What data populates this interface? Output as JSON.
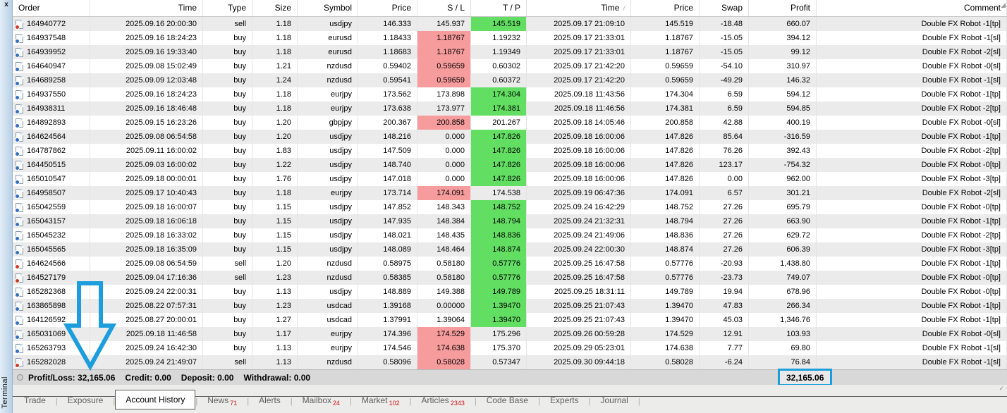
{
  "panel": {
    "close_label": "x",
    "terminal_label": "Terminal"
  },
  "colors": {
    "accent_blue": "#1b9edb",
    "tp_green": "#62de62",
    "sl_pink": "#f79c9c",
    "row_alt": "#ebebeb",
    "tab_count_red": "#cc1111"
  },
  "icons": {
    "sort_ascending": "/",
    "order_buy": "doc-with-blue-dot",
    "order_sell": "doc-with-red-dot",
    "status_circle": "hollow-circle",
    "corner_top_right": "◢",
    "corner_bottom_right": "✓"
  },
  "table": {
    "columns": [
      {
        "key": "order",
        "label": "Order",
        "align": "left",
        "sort": false
      },
      {
        "key": "open_time",
        "label": "Time",
        "align": "right",
        "sort": false
      },
      {
        "key": "type",
        "label": "Type",
        "align": "right",
        "sort": false
      },
      {
        "key": "size",
        "label": "Size",
        "align": "right",
        "sort": false
      },
      {
        "key": "symbol",
        "label": "Symbol",
        "align": "right",
        "sort": false
      },
      {
        "key": "open_price",
        "label": "Price",
        "align": "right",
        "sort": false
      },
      {
        "key": "sl",
        "label": "S / L",
        "align": "right",
        "sort": false
      },
      {
        "key": "tp",
        "label": "T / P",
        "align": "right",
        "sort": false
      },
      {
        "key": "close_time",
        "label": "Time",
        "align": "right",
        "sort": true
      },
      {
        "key": "close_price",
        "label": "Price",
        "align": "right",
        "sort": false
      },
      {
        "key": "swap",
        "label": "Swap",
        "align": "right",
        "sort": false
      },
      {
        "key": "profit",
        "label": "Profit",
        "align": "right",
        "sort": false
      },
      {
        "key": "comment",
        "label": "Comment",
        "align": "right",
        "sort": false
      }
    ],
    "rows": [
      {
        "order": "164940772",
        "open_time": "2025.09.16 20:00:30",
        "type": "sell",
        "size": "1.18",
        "symbol": "usdjpy",
        "open_price": "146.333",
        "sl": "145.937",
        "tp": "145.519",
        "sl_hl": false,
        "tp_hl": true,
        "close_time": "2025.09.17 21:09:10",
        "close_price": "145.519",
        "swap": "-18.48",
        "profit": "660.07",
        "comment": "Double FX Robot -1[tp]"
      },
      {
        "order": "164937548",
        "open_time": "2025.09.16 18:24:23",
        "type": "buy",
        "size": "1.18",
        "symbol": "eurusd",
        "open_price": "1.18433",
        "sl": "1.18767",
        "tp": "1.19232",
        "sl_hl": true,
        "tp_hl": false,
        "close_time": "2025.09.17 21:33:01",
        "close_price": "1.18767",
        "swap": "-15.05",
        "profit": "394.12",
        "comment": "Double FX Robot -1[sl]"
      },
      {
        "order": "164939952",
        "open_time": "2025.09.16 19:33:40",
        "type": "buy",
        "size": "1.18",
        "symbol": "eurusd",
        "open_price": "1.18683",
        "sl": "1.18767",
        "tp": "1.19349",
        "sl_hl": true,
        "tp_hl": false,
        "close_time": "2025.09.17 21:33:01",
        "close_price": "1.18767",
        "swap": "-15.05",
        "profit": "99.12",
        "comment": "Double FX Robot -2[sl]"
      },
      {
        "order": "164640947",
        "open_time": "2025.09.08 15:02:49",
        "type": "buy",
        "size": "1.21",
        "symbol": "nzdusd",
        "open_price": "0.59402",
        "sl": "0.59659",
        "tp": "0.60302",
        "sl_hl": true,
        "tp_hl": false,
        "close_time": "2025.09.17 21:42:20",
        "close_price": "0.59659",
        "swap": "-54.10",
        "profit": "310.97",
        "comment": "Double FX Robot -0[sl]"
      },
      {
        "order": "164689258",
        "open_time": "2025.09.09 12:03:48",
        "type": "buy",
        "size": "1.24",
        "symbol": "nzdusd",
        "open_price": "0.59541",
        "sl": "0.59659",
        "tp": "0.60372",
        "sl_hl": true,
        "tp_hl": false,
        "close_time": "2025.09.17 21:42:20",
        "close_price": "0.59659",
        "swap": "-49.29",
        "profit": "146.32",
        "comment": "Double FX Robot -1[sl]"
      },
      {
        "order": "164937550",
        "open_time": "2025.09.16 18:24:23",
        "type": "buy",
        "size": "1.18",
        "symbol": "eurjpy",
        "open_price": "173.562",
        "sl": "173.898",
        "tp": "174.304",
        "sl_hl": false,
        "tp_hl": true,
        "close_time": "2025.09.18 11:43:56",
        "close_price": "174.304",
        "swap": "6.59",
        "profit": "594.12",
        "comment": "Double FX Robot -1[tp]"
      },
      {
        "order": "164938311",
        "open_time": "2025.09.16 18:46:48",
        "type": "buy",
        "size": "1.18",
        "symbol": "eurjpy",
        "open_price": "173.638",
        "sl": "173.977",
        "tp": "174.381",
        "sl_hl": false,
        "tp_hl": true,
        "close_time": "2025.09.18 11:46:56",
        "close_price": "174.381",
        "swap": "6.59",
        "profit": "594.85",
        "comment": "Double FX Robot -2[tp]"
      },
      {
        "order": "164892893",
        "open_time": "2025.09.15 16:23:26",
        "type": "buy",
        "size": "1.20",
        "symbol": "gbpjpy",
        "open_price": "200.367",
        "sl": "200.858",
        "tp": "201.267",
        "sl_hl": true,
        "tp_hl": false,
        "close_time": "2025.09.18 14:05:46",
        "close_price": "200.858",
        "swap": "42.88",
        "profit": "400.19",
        "comment": "Double FX Robot -0[sl]"
      },
      {
        "order": "164624564",
        "open_time": "2025.09.08 06:54:58",
        "type": "buy",
        "size": "1.20",
        "symbol": "usdjpy",
        "open_price": "148.216",
        "sl": "0.000",
        "tp": "147.826",
        "sl_hl": false,
        "tp_hl": true,
        "close_time": "2025.09.18 16:00:06",
        "close_price": "147.826",
        "swap": "85.64",
        "profit": "-316.59",
        "comment": "Double FX Robot -1[tp]"
      },
      {
        "order": "164787862",
        "open_time": "2025.09.11 16:00:02",
        "type": "buy",
        "size": "1.83",
        "symbol": "usdjpy",
        "open_price": "147.509",
        "sl": "0.000",
        "tp": "147.826",
        "sl_hl": false,
        "tp_hl": true,
        "close_time": "2025.09.18 16:00:06",
        "close_price": "147.826",
        "swap": "76.26",
        "profit": "392.43",
        "comment": "Double FX Robot -2[tp]"
      },
      {
        "order": "164450515",
        "open_time": "2025.09.03 16:00:02",
        "type": "buy",
        "size": "1.22",
        "symbol": "usdjpy",
        "open_price": "148.740",
        "sl": "0.000",
        "tp": "147.826",
        "sl_hl": false,
        "tp_hl": true,
        "close_time": "2025.09.18 16:00:06",
        "close_price": "147.826",
        "swap": "123.17",
        "profit": "-754.32",
        "comment": "Double FX Robot -0[tp]"
      },
      {
        "order": "165010547",
        "open_time": "2025.09.18 00:00:01",
        "type": "buy",
        "size": "1.76",
        "symbol": "usdjpy",
        "open_price": "147.018",
        "sl": "0.000",
        "tp": "147.826",
        "sl_hl": false,
        "tp_hl": true,
        "close_time": "2025.09.18 16:00:06",
        "close_price": "147.826",
        "swap": "0.00",
        "profit": "962.00",
        "comment": "Double FX Robot -3[tp]"
      },
      {
        "order": "164958507",
        "open_time": "2025.09.17 10:40:43",
        "type": "buy",
        "size": "1.18",
        "symbol": "eurjpy",
        "open_price": "173.714",
        "sl": "174.091",
        "tp": "174.538",
        "sl_hl": true,
        "tp_hl": false,
        "close_time": "2025.09.19 06:47:36",
        "close_price": "174.091",
        "swap": "6.57",
        "profit": "301.21",
        "comment": "Double FX Robot -2[sl]"
      },
      {
        "order": "165042559",
        "open_time": "2025.09.18 16:00:07",
        "type": "buy",
        "size": "1.15",
        "symbol": "usdjpy",
        "open_price": "147.852",
        "sl": "148.343",
        "tp": "148.752",
        "sl_hl": false,
        "tp_hl": true,
        "close_time": "2025.09.24 16:42:29",
        "close_price": "148.752",
        "swap": "27.26",
        "profit": "695.79",
        "comment": "Double FX Robot -0[tp]"
      },
      {
        "order": "165043157",
        "open_time": "2025.09.18 16:06:18",
        "type": "buy",
        "size": "1.15",
        "symbol": "usdjpy",
        "open_price": "147.935",
        "sl": "148.384",
        "tp": "148.794",
        "sl_hl": false,
        "tp_hl": true,
        "close_time": "2025.09.24 21:32:31",
        "close_price": "148.794",
        "swap": "27.26",
        "profit": "663.90",
        "comment": "Double FX Robot -1[tp]"
      },
      {
        "order": "165045232",
        "open_time": "2025.09.18 16:33:02",
        "type": "buy",
        "size": "1.15",
        "symbol": "usdjpy",
        "open_price": "148.021",
        "sl": "148.435",
        "tp": "148.836",
        "sl_hl": false,
        "tp_hl": true,
        "close_time": "2025.09.24 21:49:06",
        "close_price": "148.836",
        "swap": "27.26",
        "profit": "629.72",
        "comment": "Double FX Robot -2[tp]"
      },
      {
        "order": "165045565",
        "open_time": "2025.09.18 16:35:09",
        "type": "buy",
        "size": "1.15",
        "symbol": "usdjpy",
        "open_price": "148.089",
        "sl": "148.464",
        "tp": "148.874",
        "sl_hl": false,
        "tp_hl": true,
        "close_time": "2025.09.24 22:00:30",
        "close_price": "148.874",
        "swap": "27.26",
        "profit": "606.39",
        "comment": "Double FX Robot -3[tp]"
      },
      {
        "order": "164624566",
        "open_time": "2025.09.08 06:54:59",
        "type": "sell",
        "size": "1.20",
        "symbol": "nzdusd",
        "open_price": "0.58975",
        "sl": "0.58180",
        "tp": "0.57776",
        "sl_hl": false,
        "tp_hl": true,
        "close_time": "2025.09.25 16:47:58",
        "close_price": "0.57776",
        "swap": "-20.93",
        "profit": "1,438.80",
        "comment": "Double FX Robot -1[tp]"
      },
      {
        "order": "164527179",
        "open_time": "2025.09.04 17:16:36",
        "type": "sell",
        "size": "1.23",
        "symbol": "nzdusd",
        "open_price": "0.58385",
        "sl": "0.58180",
        "tp": "0.57776",
        "sl_hl": false,
        "tp_hl": true,
        "close_time": "2025.09.25 16:47:58",
        "close_price": "0.57776",
        "swap": "-23.73",
        "profit": "749.07",
        "comment": "Double FX Robot -0[tp]"
      },
      {
        "order": "165282368",
        "open_time": "2025.09.24 22:00:31",
        "type": "buy",
        "size": "1.13",
        "symbol": "usdjpy",
        "open_price": "148.889",
        "sl": "149.388",
        "tp": "149.789",
        "sl_hl": false,
        "tp_hl": true,
        "close_time": "2025.09.25 18:31:11",
        "close_price": "149.789",
        "swap": "19.94",
        "profit": "678.96",
        "comment": "Double FX Robot -0[tp]"
      },
      {
        "order": "163865898",
        "open_time": "2025.08.22 07:57:31",
        "type": "buy",
        "size": "1.23",
        "symbol": "usdcad",
        "open_price": "1.39168",
        "sl": "0.00000",
        "tp": "1.39470",
        "sl_hl": false,
        "tp_hl": true,
        "close_time": "2025.09.25 21:07:43",
        "close_price": "1.39470",
        "swap": "47.83",
        "profit": "266.34",
        "comment": "Double FX Robot -1[tp]"
      },
      {
        "order": "164126592",
        "open_time": "2025.08.27 20:00:01",
        "type": "buy",
        "size": "1.27",
        "symbol": "usdcad",
        "open_price": "1.37991",
        "sl": "1.39064",
        "tp": "1.39470",
        "sl_hl": false,
        "tp_hl": true,
        "close_time": "2025.09.25 21:07:43",
        "close_price": "1.39470",
        "swap": "45.03",
        "profit": "1,346.76",
        "comment": "Double FX Robot -1[tp]"
      },
      {
        "order": "165031069",
        "open_time": "2025.09.18 11:46:58",
        "type": "buy",
        "size": "1.17",
        "symbol": "eurjpy",
        "open_price": "174.396",
        "sl": "174.529",
        "tp": "175.296",
        "sl_hl": true,
        "tp_hl": false,
        "close_time": "2025.09.26 00:59:28",
        "close_price": "174.529",
        "swap": "12.91",
        "profit": "103.93",
        "comment": "Double FX Robot -0[sl]"
      },
      {
        "order": "165263793",
        "open_time": "2025.09.24 16:42:30",
        "type": "buy",
        "size": "1.13",
        "symbol": "eurjpy",
        "open_price": "174.546",
        "sl": "174.638",
        "tp": "175.370",
        "sl_hl": true,
        "tp_hl": false,
        "close_time": "2025.09.29 05:23:01",
        "close_price": "174.638",
        "swap": "7.77",
        "profit": "69.80",
        "comment": "Double FX Robot -1[sl]"
      },
      {
        "order": "165282028",
        "open_time": "2025.09.24 21:49:07",
        "type": "sell",
        "size": "1.13",
        "symbol": "nzdusd",
        "open_price": "0.58096",
        "sl": "0.58028",
        "tp": "0.57347",
        "sl_hl": true,
        "tp_hl": false,
        "close_time": "2025.09.30 09:44:18",
        "close_price": "0.58028",
        "swap": "-6.24",
        "profit": "76.84",
        "comment": "Double FX Robot -1[sl]"
      }
    ]
  },
  "status_bar": {
    "profit_loss_label": "Profit/Loss:",
    "profit_loss": "32,165.06",
    "credit_label": "Credit:",
    "credit": "0.00",
    "deposit_label": "Deposit:",
    "deposit": "0.00",
    "withdrawal_label": "Withdrawal:",
    "withdrawal": "0.00",
    "highlighted_total": "32,165.06"
  },
  "tabs": [
    {
      "label": "Trade",
      "count": "",
      "active": false
    },
    {
      "label": "Exposure",
      "count": "",
      "active": false
    },
    {
      "label": "Account History",
      "count": "",
      "active": true
    },
    {
      "label": "News",
      "count": "71",
      "active": false
    },
    {
      "label": "Alerts",
      "count": "",
      "active": false
    },
    {
      "label": "Mailbox",
      "count": "24",
      "active": false
    },
    {
      "label": "Market",
      "count": "102",
      "active": false
    },
    {
      "label": "Articles",
      "count": "2343",
      "active": false
    },
    {
      "label": "Code Base",
      "count": "",
      "active": false
    },
    {
      "label": "Experts",
      "count": "",
      "active": false
    },
    {
      "label": "Journal",
      "count": "",
      "active": false
    }
  ]
}
